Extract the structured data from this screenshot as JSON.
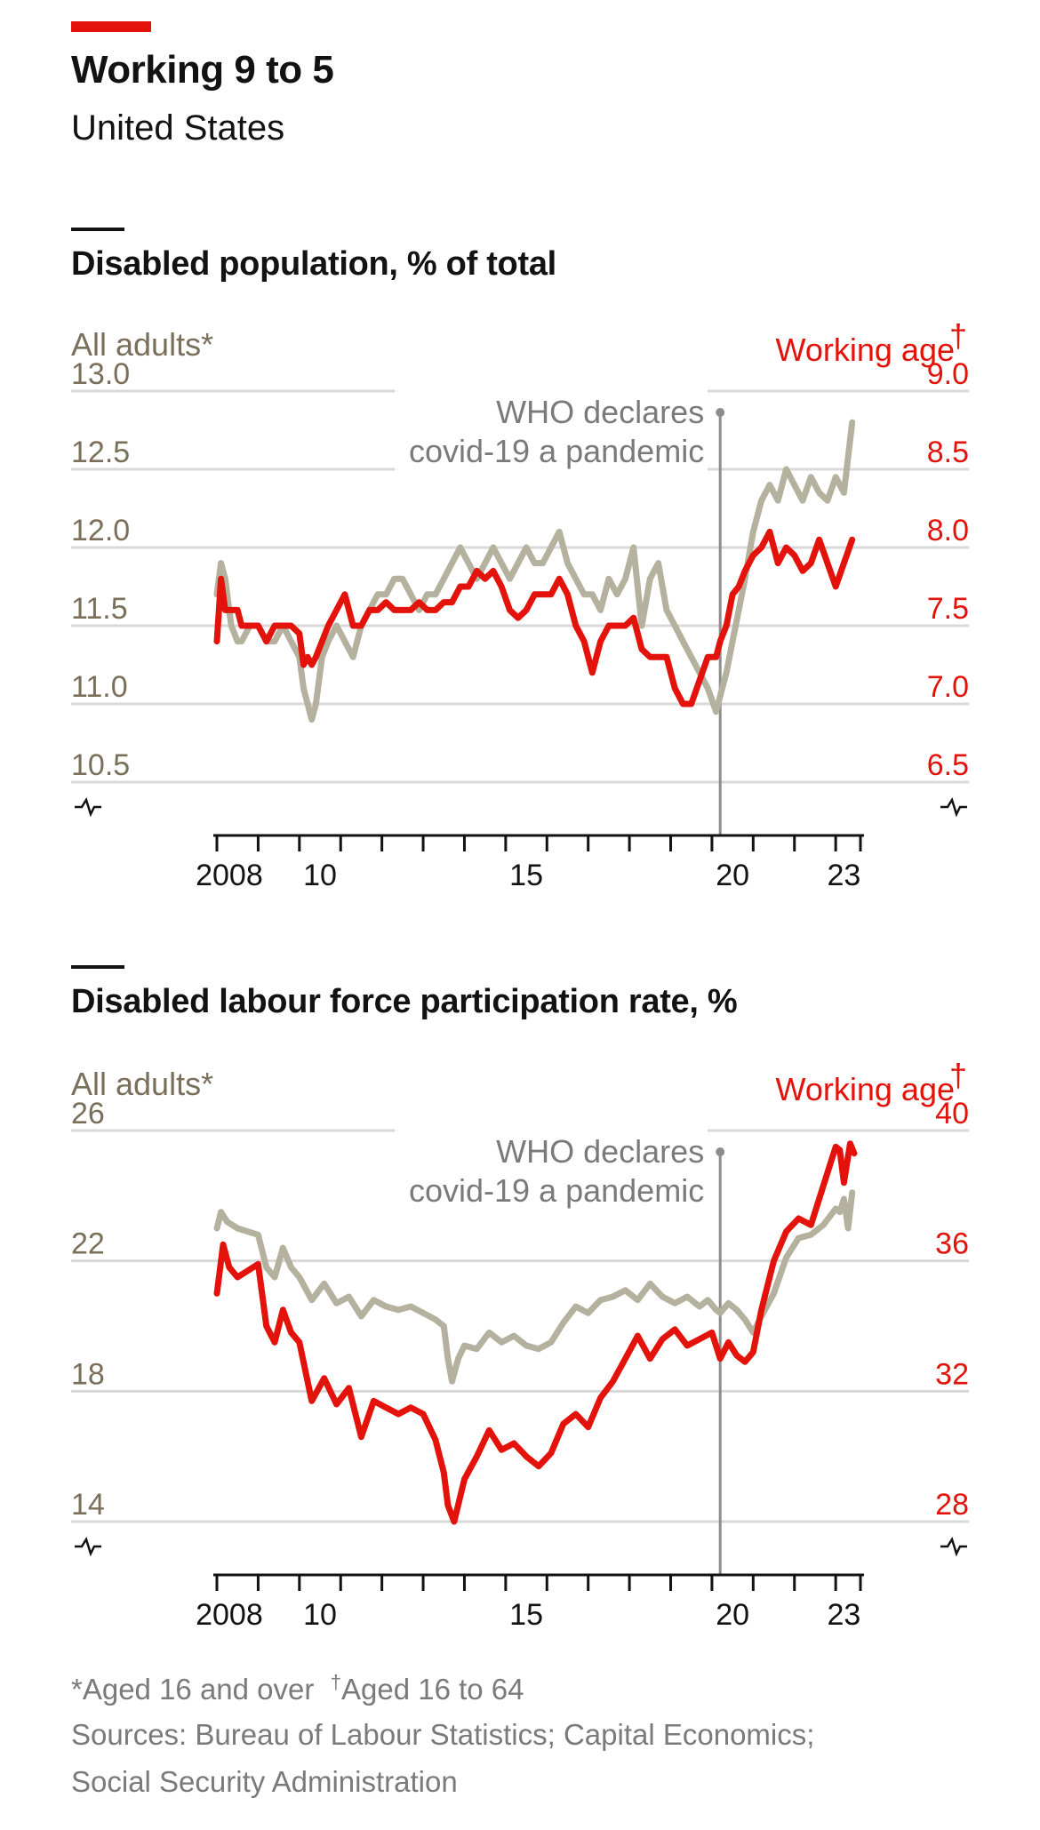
{
  "header": {
    "title": "Working 9 to 5",
    "subtitle": "United States"
  },
  "chart_data": [
    {
      "type": "line",
      "title": "Disabled population, % of total",
      "left_axis_label": "All adults*",
      "right_axis_label": "Working age",
      "right_axis_marker": "†",
      "ylim_left": [
        10.5,
        13.0
      ],
      "ylim_right": [
        6.5,
        9.0
      ],
      "yticks_left": [
        "13.0",
        "12.5",
        "12.0",
        "11.5",
        "11.0",
        "10.5"
      ],
      "yticks_right": [
        "9.0",
        "8.5",
        "8.0",
        "7.5",
        "7.0",
        "6.5"
      ],
      "xlim": [
        2008,
        2023.6
      ],
      "xtick_labels": [
        {
          "x": 2008.3,
          "label": "2008"
        },
        {
          "x": 2010.5,
          "label": "10"
        },
        {
          "x": 2015.5,
          "label": "15"
        },
        {
          "x": 2020.5,
          "label": "20"
        },
        {
          "x": 2023.2,
          "label": "23"
        }
      ],
      "annotation": {
        "line1": "WHO declares",
        "line2": "covid-19 a pandemic",
        "x": 2020.2
      },
      "grid": true,
      "series": [
        {
          "name": "All adults*",
          "axis": "left",
          "color": "#b5b19f",
          "x": [
            2008.0,
            2008.1,
            2008.2,
            2008.35,
            2008.5,
            2008.6,
            2008.8,
            2009.0,
            2009.2,
            2009.4,
            2009.6,
            2009.8,
            2010.0,
            2010.1,
            2010.2,
            2010.3,
            2010.4,
            2010.55,
            2010.7,
            2010.9,
            2011.1,
            2011.3,
            2011.5,
            2011.7,
            2011.9,
            2012.1,
            2012.3,
            2012.5,
            2012.7,
            2012.9,
            2013.1,
            2013.3,
            2013.5,
            2013.7,
            2013.9,
            2014.1,
            2014.3,
            2014.5,
            2014.7,
            2014.9,
            2015.1,
            2015.3,
            2015.5,
            2015.7,
            2015.9,
            2016.1,
            2016.3,
            2016.5,
            2016.7,
            2016.9,
            2017.1,
            2017.3,
            2017.5,
            2017.7,
            2017.9,
            2018.1,
            2018.3,
            2018.5,
            2018.7,
            2018.9,
            2019.1,
            2019.3,
            2019.5,
            2019.7,
            2019.9,
            2020.1,
            2020.2,
            2020.35,
            2020.5,
            2020.65,
            2020.8,
            2021.0,
            2021.2,
            2021.4,
            2021.6,
            2021.8,
            2022.0,
            2022.2,
            2022.4,
            2022.6,
            2022.8,
            2023.0,
            2023.2,
            2023.4
          ],
          "values": [
            11.7,
            11.9,
            11.8,
            11.5,
            11.4,
            11.4,
            11.5,
            11.5,
            11.4,
            11.4,
            11.5,
            11.4,
            11.3,
            11.1,
            11.0,
            10.9,
            11.0,
            11.3,
            11.4,
            11.5,
            11.4,
            11.3,
            11.5,
            11.6,
            11.7,
            11.7,
            11.8,
            11.8,
            11.7,
            11.6,
            11.7,
            11.7,
            11.8,
            11.9,
            12.0,
            11.9,
            11.8,
            11.9,
            12.0,
            11.9,
            11.8,
            11.9,
            12.0,
            11.9,
            11.9,
            12.0,
            12.1,
            11.9,
            11.8,
            11.7,
            11.7,
            11.6,
            11.8,
            11.7,
            11.8,
            12.0,
            11.5,
            11.8,
            11.9,
            11.6,
            11.5,
            11.4,
            11.3,
            11.2,
            11.1,
            10.95,
            11.05,
            11.2,
            11.4,
            11.6,
            11.8,
            12.1,
            12.3,
            12.4,
            12.3,
            12.5,
            12.4,
            12.3,
            12.45,
            12.35,
            12.3,
            12.45,
            12.35,
            12.8
          ]
        },
        {
          "name": "Working age",
          "axis": "right",
          "color": "#e3120b",
          "x": [
            2008.0,
            2008.1,
            2008.2,
            2008.35,
            2008.5,
            2008.6,
            2008.8,
            2009.0,
            2009.2,
            2009.4,
            2009.6,
            2009.8,
            2010.0,
            2010.1,
            2010.2,
            2010.3,
            2010.4,
            2010.55,
            2010.7,
            2010.9,
            2011.1,
            2011.3,
            2011.5,
            2011.7,
            2011.9,
            2012.1,
            2012.3,
            2012.5,
            2012.7,
            2012.9,
            2013.1,
            2013.3,
            2013.5,
            2013.7,
            2013.9,
            2014.1,
            2014.3,
            2014.5,
            2014.7,
            2014.9,
            2015.1,
            2015.3,
            2015.5,
            2015.7,
            2015.9,
            2016.1,
            2016.3,
            2016.5,
            2016.7,
            2016.9,
            2017.1,
            2017.3,
            2017.5,
            2017.7,
            2017.9,
            2018.1,
            2018.3,
            2018.5,
            2018.7,
            2018.9,
            2019.1,
            2019.3,
            2019.5,
            2019.7,
            2019.9,
            2020.1,
            2020.2,
            2020.35,
            2020.5,
            2020.65,
            2020.8,
            2021.0,
            2021.2,
            2021.4,
            2021.6,
            2021.8,
            2022.0,
            2022.2,
            2022.4,
            2022.6,
            2022.8,
            2023.0,
            2023.2,
            2023.4
          ],
          "values": [
            7.4,
            7.8,
            7.6,
            7.6,
            7.6,
            7.5,
            7.5,
            7.5,
            7.4,
            7.5,
            7.5,
            7.5,
            7.45,
            7.25,
            7.3,
            7.25,
            7.3,
            7.4,
            7.5,
            7.6,
            7.7,
            7.5,
            7.5,
            7.6,
            7.6,
            7.65,
            7.6,
            7.6,
            7.6,
            7.65,
            7.6,
            7.6,
            7.65,
            7.65,
            7.75,
            7.75,
            7.85,
            7.8,
            7.85,
            7.75,
            7.6,
            7.55,
            7.6,
            7.7,
            7.7,
            7.7,
            7.8,
            7.7,
            7.5,
            7.4,
            7.2,
            7.4,
            7.5,
            7.5,
            7.5,
            7.55,
            7.35,
            7.3,
            7.3,
            7.3,
            7.1,
            7.0,
            7.0,
            7.15,
            7.3,
            7.3,
            7.4,
            7.5,
            7.7,
            7.75,
            7.85,
            7.95,
            8.0,
            8.1,
            7.9,
            8.0,
            7.95,
            7.85,
            7.9,
            8.05,
            7.9,
            7.75,
            7.9,
            8.05
          ]
        }
      ]
    },
    {
      "type": "line",
      "title": "Disabled labour force participation rate, %",
      "left_axis_label": "All adults*",
      "right_axis_label": "Working age",
      "right_axis_marker": "†",
      "ylim_left": [
        14,
        26
      ],
      "ylim_right": [
        28,
        40
      ],
      "yticks_left": [
        "26",
        "22",
        "18",
        "14"
      ],
      "yticks_right": [
        "40",
        "36",
        "32",
        "28"
      ],
      "xlim": [
        2008,
        2023.6
      ],
      "xtick_labels": [
        {
          "x": 2008.3,
          "label": "2008"
        },
        {
          "x": 2010.5,
          "label": "10"
        },
        {
          "x": 2015.5,
          "label": "15"
        },
        {
          "x": 2020.5,
          "label": "20"
        },
        {
          "x": 2023.2,
          "label": "23"
        }
      ],
      "annotation": {
        "line1": "WHO declares",
        "line2": "covid-19 a pandemic",
        "x": 2020.2
      },
      "grid": true,
      "series": [
        {
          "name": "All adults*",
          "axis": "left",
          "color": "#b5b19f",
          "x": [
            2008.0,
            2008.1,
            2008.25,
            2008.5,
            2008.75,
            2009.0,
            2009.2,
            2009.4,
            2009.6,
            2009.8,
            2010.0,
            2010.3,
            2010.6,
            2010.9,
            2011.2,
            2011.5,
            2011.8,
            2012.1,
            2012.4,
            2012.7,
            2013.0,
            2013.3,
            2013.5,
            2013.6,
            2013.7,
            2013.85,
            2014.0,
            2014.3,
            2014.6,
            2014.9,
            2015.2,
            2015.5,
            2015.8,
            2016.1,
            2016.4,
            2016.7,
            2017.0,
            2017.3,
            2017.6,
            2017.9,
            2018.2,
            2018.5,
            2018.8,
            2019.1,
            2019.4,
            2019.7,
            2019.9,
            2020.1,
            2020.2,
            2020.4,
            2020.6,
            2020.8,
            2021.0,
            2021.2,
            2021.5,
            2021.8,
            2022.1,
            2022.4,
            2022.7,
            2023.0,
            2023.1,
            2023.2,
            2023.3,
            2023.4
          ],
          "values": [
            23.0,
            23.5,
            23.2,
            23.0,
            22.9,
            22.8,
            21.8,
            21.5,
            22.4,
            21.8,
            21.5,
            20.8,
            21.3,
            20.7,
            20.9,
            20.3,
            20.8,
            20.6,
            20.5,
            20.6,
            20.4,
            20.2,
            20.0,
            19.0,
            18.3,
            19.0,
            19.4,
            19.3,
            19.8,
            19.5,
            19.7,
            19.4,
            19.3,
            19.5,
            20.1,
            20.6,
            20.4,
            20.8,
            20.9,
            21.1,
            20.8,
            21.3,
            20.9,
            20.7,
            20.9,
            20.6,
            20.8,
            20.5,
            20.4,
            20.7,
            20.5,
            20.2,
            19.8,
            20.3,
            21.0,
            22.1,
            22.7,
            22.8,
            23.1,
            23.6,
            23.5,
            23.9,
            23.0,
            24.1
          ]
        },
        {
          "name": "Working age",
          "axis": "right",
          "color": "#e3120b",
          "x": [
            2008.0,
            2008.15,
            2008.3,
            2008.5,
            2008.75,
            2009.0,
            2009.2,
            2009.4,
            2009.6,
            2009.8,
            2010.0,
            2010.3,
            2010.6,
            2010.9,
            2011.2,
            2011.5,
            2011.8,
            2012.1,
            2012.4,
            2012.7,
            2013.0,
            2013.3,
            2013.5,
            2013.6,
            2013.75,
            2014.0,
            2014.3,
            2014.6,
            2014.9,
            2015.2,
            2015.5,
            2015.8,
            2016.1,
            2016.4,
            2016.7,
            2017.0,
            2017.3,
            2017.6,
            2017.9,
            2018.2,
            2018.5,
            2018.8,
            2019.1,
            2019.4,
            2019.7,
            2020.0,
            2020.2,
            2020.4,
            2020.6,
            2020.8,
            2021.0,
            2021.2,
            2021.5,
            2021.8,
            2022.1,
            2022.4,
            2022.7,
            2022.9,
            2023.0,
            2023.1,
            2023.2,
            2023.35,
            2023.45
          ],
          "values": [
            35.0,
            36.5,
            35.8,
            35.5,
            35.7,
            35.9,
            34.0,
            33.5,
            34.5,
            33.8,
            33.5,
            31.7,
            32.4,
            31.6,
            32.1,
            30.6,
            31.7,
            31.5,
            31.3,
            31.5,
            31.3,
            30.5,
            29.5,
            28.5,
            28.0,
            29.3,
            30.0,
            30.8,
            30.2,
            30.4,
            30.0,
            29.7,
            30.1,
            31.0,
            31.3,
            30.9,
            31.8,
            32.3,
            33.0,
            33.7,
            33.0,
            33.6,
            33.9,
            33.4,
            33.6,
            33.8,
            33.0,
            33.5,
            33.1,
            32.9,
            33.2,
            34.5,
            36.0,
            36.9,
            37.3,
            37.1,
            38.3,
            39.1,
            39.5,
            39.4,
            38.4,
            39.6,
            39.3
          ]
        }
      ]
    }
  ],
  "footnotes": {
    "note_adults": "*Aged 16 and over",
    "dagger": "†",
    "note_working_age": "Aged 16 to 64",
    "sources_line1": "Sources: Bureau of Labour Statistics; Capital Economics;",
    "sources_line2": "Social Security Administration"
  },
  "colors": {
    "accent_red": "#e3120b",
    "adults_grey": "#b5b19f",
    "axis_label_brown": "#7a6f5a"
  }
}
